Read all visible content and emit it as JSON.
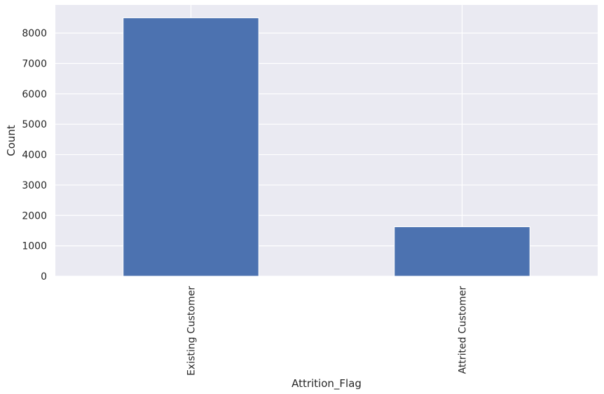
{
  "chart_data": {
    "type": "bar",
    "title": "",
    "xlabel": "Attrition_Flag",
    "ylabel": "Count",
    "categories": [
      "Existing Customer",
      "Attrited Customer"
    ],
    "values": [
      8500,
      1627
    ],
    "ylim": [
      0,
      8925
    ],
    "yticks": [
      0,
      1000,
      2000,
      3000,
      4000,
      5000,
      6000,
      7000,
      8000
    ],
    "grid": true,
    "legend": "none",
    "tick_label_rotation": "vertical",
    "colors": {
      "bar": "#4c72b0",
      "background": "#eaeaf2",
      "grid": "#ffffff",
      "text": "#262626"
    }
  }
}
